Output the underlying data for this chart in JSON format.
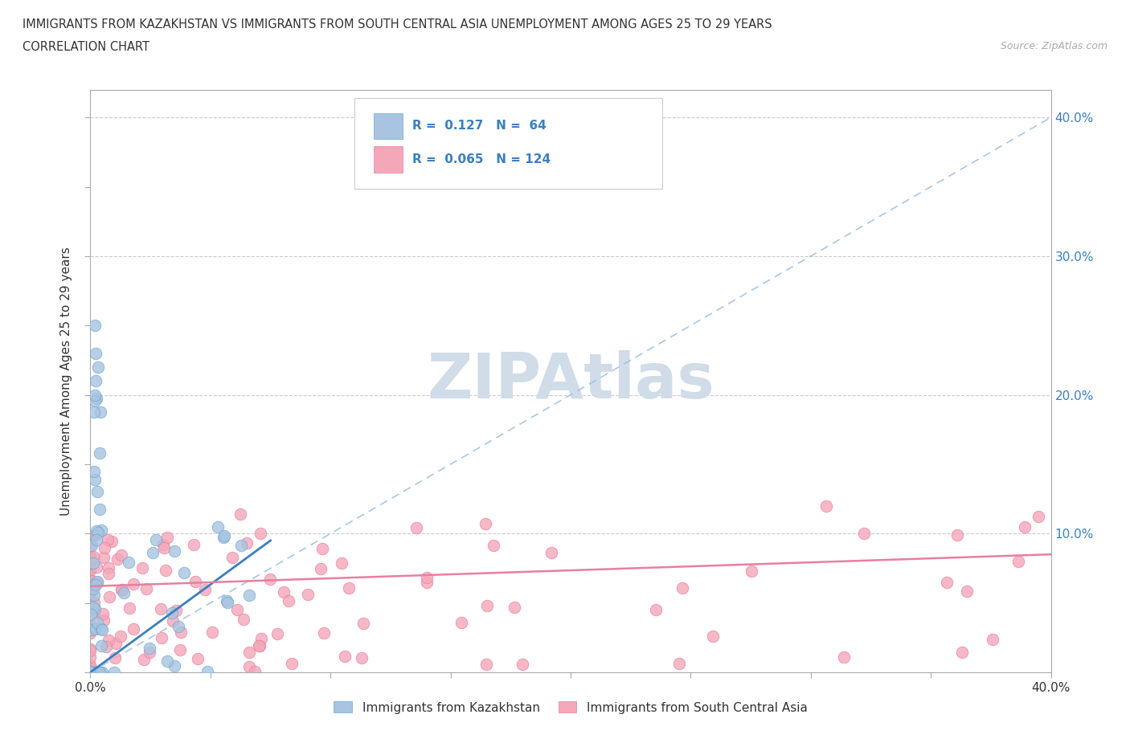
{
  "title_line1": "IMMIGRANTS FROM KAZAKHSTAN VS IMMIGRANTS FROM SOUTH CENTRAL ASIA UNEMPLOYMENT AMONG AGES 25 TO 29 YEARS",
  "title_line2": "CORRELATION CHART",
  "source_text": "Source: ZipAtlas.com",
  "ylabel": "Unemployment Among Ages 25 to 29 years",
  "xlim": [
    0.0,
    0.4
  ],
  "ylim": [
    0.0,
    0.42
  ],
  "x_ticks": [
    0.0,
    0.05,
    0.1,
    0.15,
    0.2,
    0.25,
    0.3,
    0.35,
    0.4
  ],
  "y_ticks": [
    0.0,
    0.05,
    0.1,
    0.15,
    0.2,
    0.25,
    0.3,
    0.35,
    0.4
  ],
  "kazakhstan_color": "#a8c4e0",
  "kazakhstan_edge": "#6aaad4",
  "sca_color": "#f4a7b9",
  "sca_edge": "#e87fa0",
  "kaz_line_color": "#3a7fc1",
  "sca_line_color": "#e87fa0",
  "diag_line_color": "#a0c0e8",
  "kazakhstan_R": 0.127,
  "kazakhstan_N": 64,
  "sca_R": 0.065,
  "sca_N": 124,
  "watermark_color": "#d0dce8",
  "legend_text_color": "#3a7fc1",
  "kaz_trend_x0": 0.0,
  "kaz_trend_y0": 0.0,
  "kaz_trend_x1": 0.08,
  "kaz_trend_y1": 0.1,
  "sca_trend_x0": 0.0,
  "sca_trend_y0": 0.06,
  "sca_trend_x1": 0.4,
  "sca_trend_y1": 0.085
}
